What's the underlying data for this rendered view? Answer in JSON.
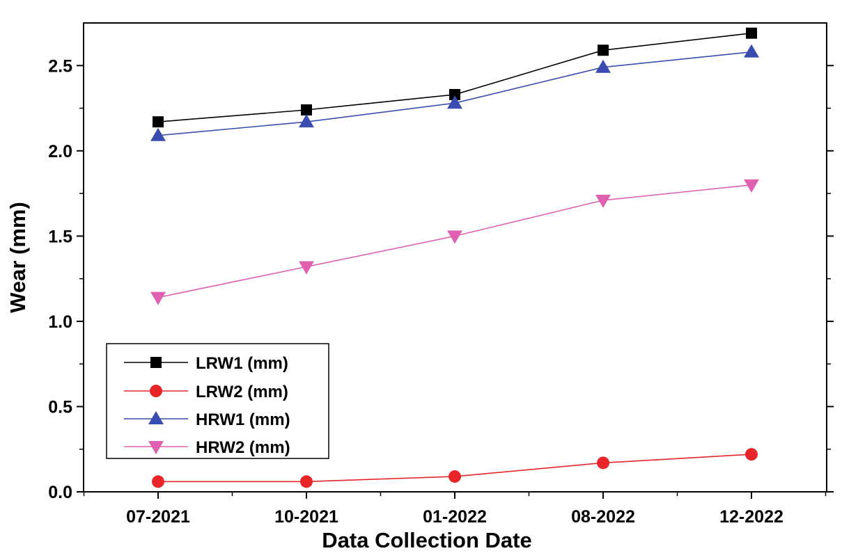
{
  "chart_data": {
    "type": "line",
    "title": "",
    "xlabel": "Data Collection Date",
    "ylabel": "Wear (mm)",
    "categories": [
      "07-2021",
      "10-2021",
      "01-2022",
      "08-2022",
      "12-2022"
    ],
    "yticks": [
      "0.0",
      "0.5",
      "1.0",
      "1.5",
      "2.0",
      "2.5"
    ],
    "ylim": [
      0,
      2.75
    ],
    "grid": false,
    "legend_position": "left",
    "series": [
      {
        "name": "LRW1 (mm)",
        "values": [
          2.17,
          2.24,
          2.33,
          2.59,
          2.69
        ],
        "color": "#000000",
        "marker": "square"
      },
      {
        "name": "LRW2 (mm)",
        "values": [
          0.06,
          0.06,
          0.09,
          0.17,
          0.22
        ],
        "color": "#e8262a",
        "marker": "circle"
      },
      {
        "name": "HRW1 (mm)",
        "values": [
          2.09,
          2.17,
          2.28,
          2.49,
          2.58
        ],
        "color": "#3a4cb0",
        "marker": "triangle-up"
      },
      {
        "name": "HRW2 (mm)",
        "values": [
          1.14,
          1.32,
          1.5,
          1.71,
          1.8
        ],
        "color": "#e060b0",
        "marker": "triangle-down"
      }
    ]
  }
}
